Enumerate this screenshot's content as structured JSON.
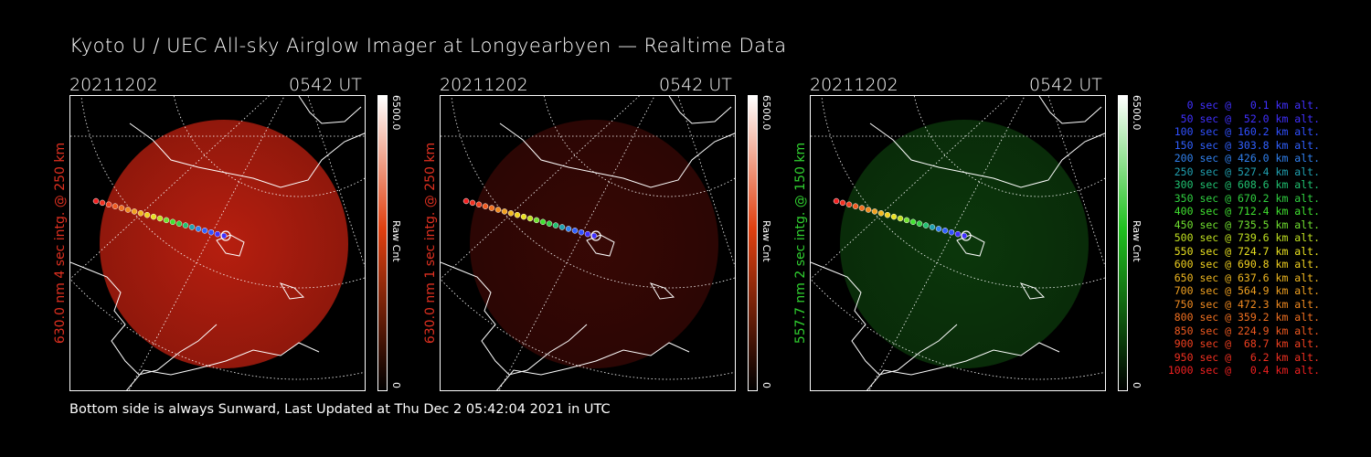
{
  "title": "Kyoto U / UEC All-sky Airglow Imager at Longyearbyen — Realtime Data",
  "panels": [
    {
      "date": "20211202",
      "time": "0542 UT",
      "ylabel": "630.0 nm 4 sec intg. @ 250 km",
      "label_color": "#e03020",
      "tint": "#c02010",
      "max": "6500.0",
      "min": "0",
      "unit": "Raw Cnt",
      "cbar_color": "#e04010"
    },
    {
      "date": "20211202",
      "time": "0542 UT",
      "ylabel": "630.0 nm 1 sec intg. @ 250 km",
      "label_color": "#e03020",
      "tint": "#3a0805",
      "max": "6500.0",
      "min": "0",
      "unit": "Raw Cnt",
      "cbar_color": "#e04010"
    },
    {
      "date": "20211202",
      "time": "0542 UT",
      "ylabel": "557.7 nm 2 sec intg. @ 150 km",
      "label_color": "#30d030",
      "tint": "#0c3a0c",
      "max": "6500.0",
      "min": "0",
      "unit": "Raw Cnt",
      "cbar_color": "#20c020"
    }
  ],
  "legend": [
    {
      "text": "0 sec @   0.1 km alt.",
      "color": "#4030ff"
    },
    {
      "text": "50 sec @  52.0 km alt.",
      "color": "#4030ff"
    },
    {
      "text": "100 sec @ 160.2 km alt.",
      "color": "#3050ff"
    },
    {
      "text": "150 sec @ 303.8 km alt.",
      "color": "#3060ff"
    },
    {
      "text": "200 sec @ 426.0 km alt.",
      "color": "#3080ee"
    },
    {
      "text": "250 sec @ 527.4 km alt.",
      "color": "#20a0b0"
    },
    {
      "text": "300 sec @ 608.6 km alt.",
      "color": "#20c070"
    },
    {
      "text": "350 sec @ 670.2 km alt.",
      "color": "#30d040"
    },
    {
      "text": "400 sec @ 712.4 km alt.",
      "color": "#40e030"
    },
    {
      "text": "450 sec @ 735.5 km alt.",
      "color": "#70e030"
    },
    {
      "text": "500 sec @ 739.6 km alt.",
      "color": "#c0e020"
    },
    {
      "text": "550 sec @ 724.7 km alt.",
      "color": "#e8e020"
    },
    {
      "text": "600 sec @ 690.8 km alt.",
      "color": "#f0d020"
    },
    {
      "text": "650 sec @ 637.6 km alt.",
      "color": "#f0b820"
    },
    {
      "text": "700 sec @ 564.9 km alt.",
      "color": "#f0a020"
    },
    {
      "text": "750 sec @ 472.3 km alt.",
      "color": "#f08a20"
    },
    {
      "text": "800 sec @ 359.2 km alt.",
      "color": "#f07020"
    },
    {
      "text": "850 sec @ 224.9 km alt.",
      "color": "#f05a20"
    },
    {
      "text": "900 sec @  68.7 km alt.",
      "color": "#f04020"
    },
    {
      "text": "950 sec @   6.2 km alt.",
      "color": "#f03020"
    },
    {
      "text": "1000 sec @   0.4 km alt.",
      "color": "#f02020"
    }
  ],
  "footer": "Bottom side is always Sunward, Last Updated at Thu Dec  2 05:42:04 2021 in UTC"
}
